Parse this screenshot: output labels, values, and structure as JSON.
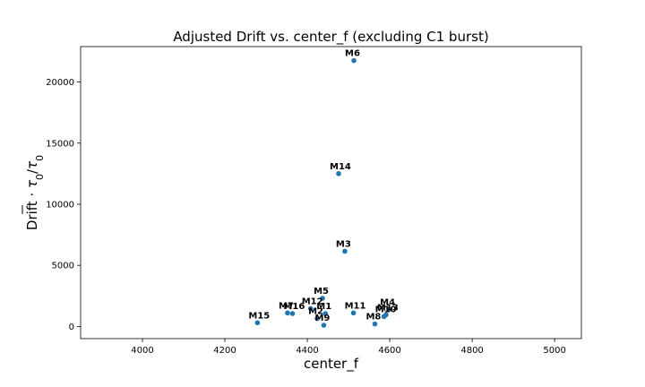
{
  "chart_data": {
    "type": "scatter",
    "title": "Adjusted Drift vs. center_f (excluding C1 burst)",
    "xlabel": "center_f",
    "ylabel_prefix": "Drift · ",
    "ylabel_tau_bar": "τ",
    "ylabel_sub": "0",
    "ylabel_sep": "/",
    "ylabel_tau": "τ",
    "xlim": [
      3850,
      5065
    ],
    "ylim": [
      -1000,
      22900
    ],
    "xticks": [
      4000,
      4200,
      4400,
      4600,
      4800,
      5000
    ],
    "yticks": [
      0,
      5000,
      10000,
      15000,
      20000
    ],
    "marker_color": "#1f77b4",
    "grid": false,
    "legend": "none",
    "points": [
      {
        "label": "M6",
        "x": 4513,
        "y": 21750
      },
      {
        "label": "M14",
        "x": 4476,
        "y": 12500
      },
      {
        "label": "M3",
        "x": 4491,
        "y": 6150
      },
      {
        "label": "M5",
        "x": 4437,
        "y": 2300
      },
      {
        "label": "M4",
        "x": 4598,
        "y": 1400
      },
      {
        "label": "M12",
        "x": 4408,
        "y": 1450
      },
      {
        "label": "M7",
        "x": 4352,
        "y": 1100
      },
      {
        "label": "M16",
        "x": 4364,
        "y": 1050
      },
      {
        "label": "M1",
        "x": 4444,
        "y": 1050
      },
      {
        "label": "M11",
        "x": 4512,
        "y": 1100
      },
      {
        "label": "M13",
        "x": 4591,
        "y": 950
      },
      {
        "label": "M10",
        "x": 4586,
        "y": 800
      },
      {
        "label": "M2",
        "x": 4424,
        "y": 650
      },
      {
        "label": "M9",
        "x": 4440,
        "y": 100
      },
      {
        "label": "M8",
        "x": 4564,
        "y": 200
      },
      {
        "label": "M15",
        "x": 4279,
        "y": 300
      }
    ]
  }
}
